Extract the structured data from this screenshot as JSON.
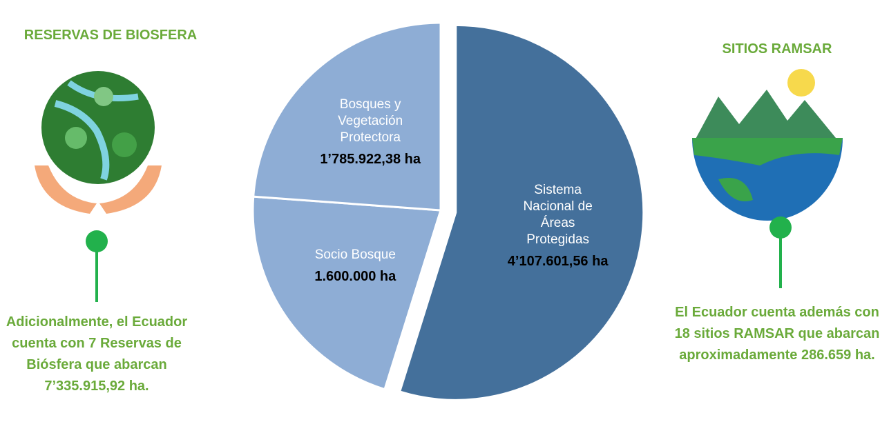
{
  "chart_data": {
    "type": "pie",
    "categories": [
      "Sistema Nacional de Áreas Protegidas",
      "Socio Bosque",
      "Bosques y Vegetación Protectora"
    ],
    "values": [
      4107601.56,
      1600000,
      1785922.38
    ],
    "value_labels": [
      "4’107.601,56 ha",
      "1.600.000 ha",
      "1’785.922,38 ha"
    ],
    "colors": [
      "#44709b",
      "#8eadd5",
      "#8eadd5"
    ],
    "explode": [
      true,
      false,
      false
    ]
  },
  "left": {
    "title": "RESERVAS DE BIOSFERA",
    "text": "Adicionalmente, el Ecuador cuenta con 7 Reservas de Biósfera que abarcan 7’335.915,92 ha."
  },
  "right": {
    "title": "SITIOS RAMSAR",
    "text": "El Ecuador cuenta además con 18 sitios RAMSAR que abarcan aproximadamente 286.659 ha."
  }
}
